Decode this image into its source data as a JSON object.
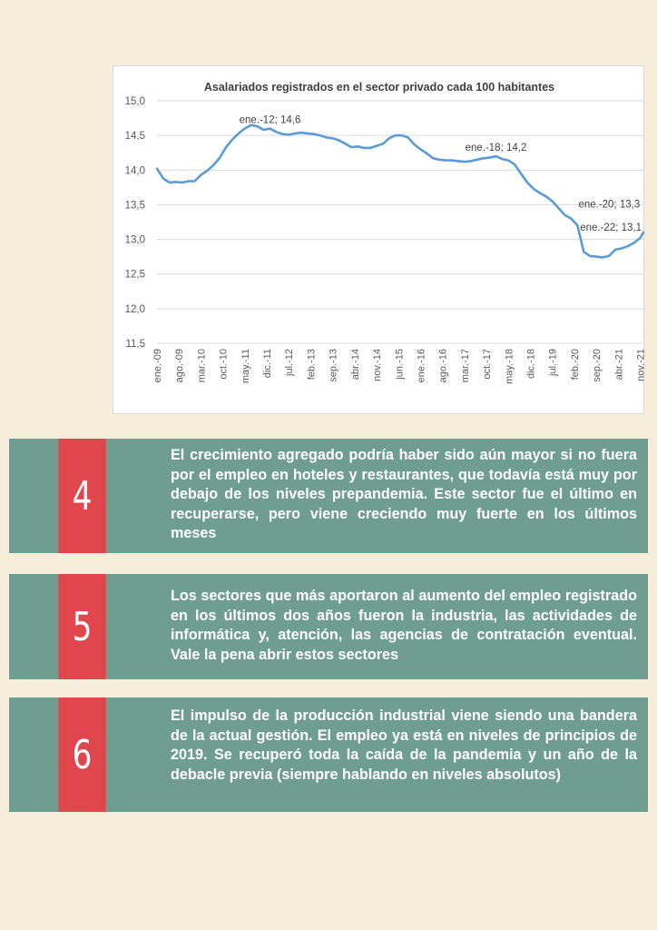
{
  "chart_data": {
    "type": "line",
    "title": "Asalariados registrados en el sector privado cada 100 habitantes",
    "ylim": [
      11.5,
      15.0
    ],
    "yticks": [
      "15,0",
      "14,5",
      "14,0",
      "13,5",
      "13,0",
      "12,5",
      "12,0",
      "11,5"
    ],
    "xticks": [
      "ene.-09",
      "ago.-09",
      "mar.-10",
      "oct.-10",
      "may.-11",
      "dic.-11",
      "jul.-12",
      "feb.-13",
      "sep.-13",
      "abr.-14",
      "nov.-14",
      "jun.-15",
      "ene.-16",
      "ago.-16",
      "mar.-17",
      "oct.-17",
      "may.-18",
      "dic.-18",
      "jul.-19",
      "feb.-20",
      "sep.-20",
      "abr.-21",
      "nov.-21"
    ],
    "grid": "horizontal",
    "color": "#5b9bd5",
    "series": [
      {
        "x": [
          "ene.-09",
          "mar.-09",
          "may.-09",
          "jul.-09",
          "sep.-09",
          "nov.-09",
          "ene.-10",
          "mar.-10",
          "may.-10",
          "jul.-10",
          "sep.-10",
          "nov.-10",
          "ene.-11",
          "mar.-11",
          "may.-11",
          "jul.-11",
          "sep.-11",
          "nov.-11",
          "ene.-12",
          "mar.-12",
          "may.-12",
          "jul.-12",
          "sep.-12",
          "nov.-12",
          "ene.-13",
          "mar.-13",
          "may.-13",
          "jul.-13",
          "sep.-13",
          "nov.-13",
          "ene.-14",
          "mar.-14",
          "may.-14",
          "jul.-14",
          "sep.-14",
          "nov.-14",
          "ene.-15",
          "mar.-15",
          "may.-15",
          "jul.-15",
          "sep.-15",
          "nov.-15",
          "ene.-16",
          "mar.-16",
          "may.-16",
          "jul.-16",
          "sep.-16",
          "nov.-16",
          "ene.-17",
          "mar.-17",
          "may.-17",
          "jul.-17",
          "sep.-17",
          "nov.-17",
          "ene.-18",
          "mar.-18",
          "may.-18",
          "jul.-18",
          "sep.-18",
          "nov.-18",
          "ene.-19",
          "mar.-19",
          "may.-19",
          "jul.-19",
          "sep.-19",
          "nov.-19",
          "ene.-20",
          "mar.-20",
          "may.-20",
          "jul.-20",
          "sep.-20",
          "nov.-20",
          "ene.-21",
          "mar.-21",
          "may.-21",
          "jul.-21",
          "sep.-21",
          "nov.-21",
          "dic.-21"
        ],
        "values": [
          14.02,
          13.88,
          13.82,
          13.83,
          13.82,
          13.84,
          13.84,
          13.93,
          13.99,
          14.07,
          14.18,
          14.33,
          14.44,
          14.53,
          14.6,
          14.65,
          14.63,
          14.58,
          14.6,
          14.55,
          14.52,
          14.51,
          14.53,
          14.54,
          14.53,
          14.52,
          14.5,
          14.47,
          14.46,
          14.43,
          14.38,
          14.33,
          14.34,
          14.32,
          14.32,
          14.35,
          14.38,
          14.46,
          14.5,
          14.5,
          14.47,
          14.37,
          14.3,
          14.24,
          14.17,
          14.15,
          14.14,
          14.14,
          14.13,
          14.12,
          14.13,
          14.15,
          14.17,
          14.18,
          14.2,
          14.16,
          14.14,
          14.08,
          13.95,
          13.82,
          13.73,
          13.67,
          13.62,
          13.55,
          13.45,
          13.35,
          13.3,
          13.2,
          12.82,
          12.76,
          12.75,
          12.74,
          12.76,
          12.85,
          12.87,
          12.9,
          12.95,
          13.02,
          13.1
        ]
      }
    ],
    "annotations": [
      {
        "text": "ene.-12; 14,6",
        "x": "ene.-12",
        "y": 14.6
      },
      {
        "text": "ene.-18; 14,2",
        "x": "ene.-18",
        "y": 14.2
      },
      {
        "text": "ene.-20; 13,3",
        "x": "ene.-20",
        "y": 13.3
      },
      {
        "text": "ene.-22; 13,1",
        "x": "ene.-22",
        "y": 13.1
      }
    ]
  },
  "cards": [
    {
      "number": "4",
      "text": "El crecimiento agregado podría haber sido aún mayor si no fuera por el empleo en hoteles y restaurantes, que todavía está muy por debajo de los niveles prepandemia. Este sector fue el último en recuperarse, pero viene creciendo muy fuerte en los últimos meses"
    },
    {
      "number": "5",
      "text": "Los sectores que más aportaron al aumento del empleo registrado en los últimos dos años fueron la industria, las actividades de informática y, atención, las agencias de contratación eventual. Vale la pena abrir estos sectores"
    },
    {
      "number": "6",
      "text": "El impulso de la producción industrial viene siendo una bandera de la actual gestión. El empleo ya está en niveles de principios de 2019. Se recuperó toda la caída de la pandemia y un año de la debacle previa (siempre hablando en niveles absolutos)"
    }
  ],
  "colors": {
    "background": "#f6edda",
    "card": "#6f9e90",
    "number_box": "#e0474c",
    "line": "#5b9bd5"
  }
}
